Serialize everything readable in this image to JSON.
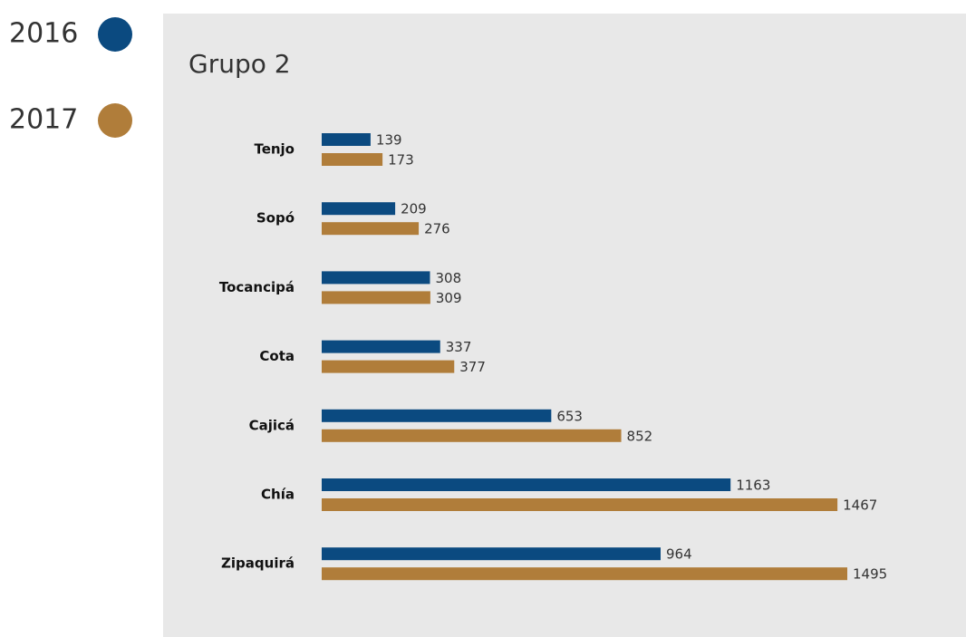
{
  "chart_data": {
    "type": "bar",
    "orientation": "horizontal",
    "title": "Grupo 2",
    "categories": [
      "Tenjo",
      "Sopó",
      "Tocancipá",
      "Cota",
      "Cajicá",
      "Chía",
      "Zipaquirá"
    ],
    "series": [
      {
        "name": "2016",
        "color": "#0b4a80",
        "values": [
          139,
          209,
          308,
          337,
          653,
          1163,
          964
        ]
      },
      {
        "name": "2017",
        "color": "#b07d3a",
        "values": [
          173,
          276,
          309,
          377,
          852,
          1467,
          1495
        ]
      }
    ]
  }
}
